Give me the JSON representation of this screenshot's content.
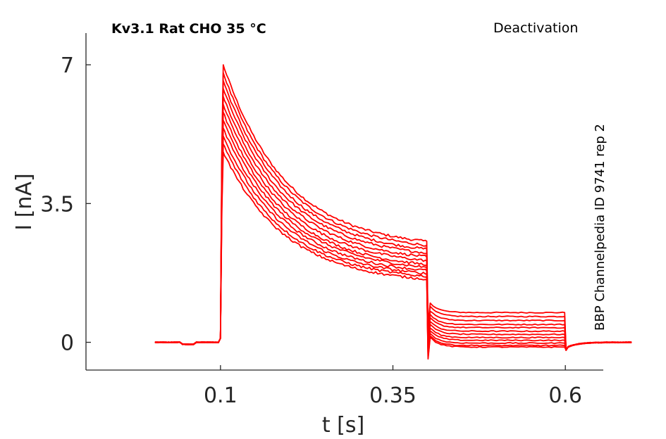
{
  "chart_data": {
    "type": "line",
    "title": "Kv3.1  Rat  CHO  35 °C",
    "protocol": "Deactivation",
    "source_label": "BBP Channelpedia ID 9741 rep 2",
    "xlabel": "t [s]",
    "ylabel": "I [nA]",
    "xlim": [
      -0.095,
      0.655
    ],
    "ylim": [
      -0.7,
      7.8
    ],
    "xticks": [
      {
        "value": 0.1,
        "label": "0.1"
      },
      {
        "value": 0.35,
        "label": "0.35"
      },
      {
        "value": 0.6,
        "label": "0.6"
      }
    ],
    "yticks": [
      {
        "value": 0,
        "label": "0"
      },
      {
        "value": 3.5,
        "label": "3.5"
      },
      {
        "value": 7,
        "label": "7"
      }
    ],
    "grid": false,
    "line_color": "#ff0000",
    "timing_s": {
      "start": 0.005,
      "step_on": 0.1,
      "step_off": 0.4,
      "tail_off": 0.6,
      "end": 0.7
    },
    "series": [
      {
        "peak": 7.0,
        "end_step": 2.55,
        "tail": 0.75
      },
      {
        "peak": 6.8,
        "end_step": 2.45,
        "tail": 0.65
      },
      {
        "peak": 6.6,
        "end_step": 2.35,
        "tail": 0.55
      },
      {
        "peak": 6.4,
        "end_step": 2.25,
        "tail": 0.45
      },
      {
        "peak": 6.2,
        "end_step": 2.15,
        "tail": 0.37
      },
      {
        "peak": 6.0,
        "end_step": 2.05,
        "tail": 0.28
      },
      {
        "peak": 5.8,
        "end_step": 1.95,
        "tail": 0.2
      },
      {
        "peak": 5.6,
        "end_step": 1.88,
        "tail": 0.12
      },
      {
        "peak": 5.4,
        "end_step": 1.8,
        "tail": 0.05
      },
      {
        "peak": 5.2,
        "end_step": 1.72,
        "tail": -0.02
      },
      {
        "peak": 5.0,
        "end_step": 1.65,
        "tail": -0.08
      },
      {
        "peak": 4.8,
        "end_step": 1.58,
        "tail": -0.12
      }
    ]
  }
}
